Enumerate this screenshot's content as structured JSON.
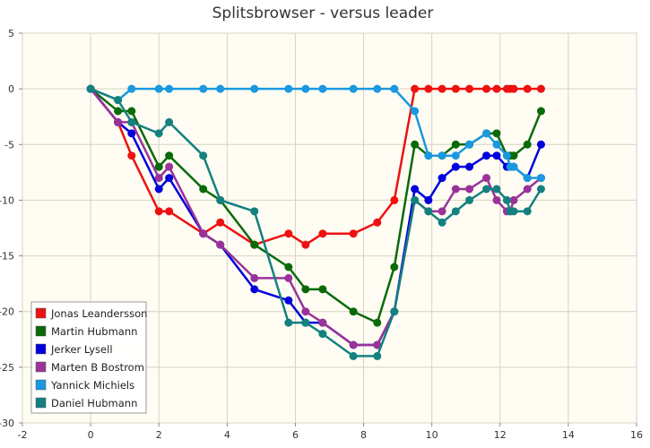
{
  "chart_data": {
    "type": "line",
    "title": "Splitsbrowser - versus leader",
    "xlabel": "",
    "ylabel": "",
    "xlim": [
      -2,
      16
    ],
    "ylim": [
      -30,
      5
    ],
    "xticks": [
      "-2",
      "0",
      "2",
      "4",
      "6",
      "8",
      "10",
      "12",
      "14",
      "16"
    ],
    "yticks": [
      "5",
      "0",
      "-5",
      "-10",
      "-15",
      "-20",
      "-25",
      "-30"
    ],
    "grid": true,
    "legend_position": "bottom-left",
    "colors": {
      "background": "#fffdf3",
      "grid": "#d6d2c2",
      "axis": "#888888"
    },
    "series": [
      {
        "name": "Jonas Leandersson",
        "color": "#ee1111",
        "x": [
          0,
          0.8,
          1.2,
          2.0,
          2.3,
          3.3,
          3.8,
          4.8,
          5.8,
          6.3,
          6.8,
          7.7,
          8.4,
          8.9,
          9.5,
          9.9,
          10.3,
          10.7,
          11.1,
          11.6,
          11.9,
          12.2,
          12.3,
          12.4,
          12.8,
          13.2
        ],
        "y": [
          0,
          -3,
          -6,
          -11,
          -11,
          -13,
          -12,
          -14,
          -13,
          -14,
          -13,
          -13,
          -12,
          -10,
          0,
          0,
          0,
          0,
          0,
          0,
          0,
          0,
          0,
          0,
          0,
          0
        ]
      },
      {
        "name": "Martin Hubmann",
        "color": "#0a6a0a",
        "x": [
          0,
          0.8,
          1.2,
          2.0,
          2.3,
          3.3,
          3.8,
          4.8,
          5.8,
          6.3,
          6.8,
          7.7,
          8.4,
          8.9,
          9.5,
          9.9,
          10.3,
          10.7,
          11.1,
          11.6,
          11.9,
          12.2,
          12.3,
          12.4,
          12.8,
          13.2
        ],
        "y": [
          0,
          -2,
          -2,
          -7,
          -6,
          -9,
          -10,
          -14,
          -16,
          -18,
          -18,
          -20,
          -21,
          -16,
          -5,
          -6,
          -6,
          -5,
          -5,
          -4,
          -4,
          -6,
          -6,
          -6,
          -5,
          -2
        ]
      },
      {
        "name": "Jerker Lysell",
        "color": "#0000dd",
        "x": [
          0,
          0.8,
          1.2,
          2.0,
          2.3,
          3.3,
          3.8,
          4.8,
          5.8,
          6.3,
          6.8,
          7.7,
          8.4,
          8.9,
          9.5,
          9.9,
          10.3,
          10.7,
          11.1,
          11.6,
          11.9,
          12.2,
          12.3,
          12.4,
          12.8,
          13.2
        ],
        "y": [
          0,
          -3,
          -4,
          -9,
          -8,
          -13,
          -14,
          -18,
          -19,
          -21,
          -21,
          -23,
          -23,
          -20,
          -9,
          -10,
          -8,
          -7,
          -7,
          -6,
          -6,
          -7,
          -7,
          -7,
          -8,
          -5
        ]
      },
      {
        "name": "Marten B Bostrom",
        "color": "#993399",
        "x": [
          0,
          0.8,
          1.2,
          2.0,
          2.3,
          3.3,
          3.8,
          4.8,
          5.8,
          6.3,
          6.8,
          7.7,
          8.4,
          8.9,
          9.5,
          9.9,
          10.3,
          10.7,
          11.1,
          11.6,
          11.9,
          12.2,
          12.3,
          12.4,
          12.8,
          13.2
        ],
        "y": [
          0,
          -3,
          -3,
          -8,
          -7,
          -13,
          -14,
          -17,
          -17,
          -20,
          -21,
          -23,
          -23,
          -20,
          -10,
          -11,
          -11,
          -9,
          -9,
          -8,
          -10,
          -11,
          -11,
          -10,
          -9,
          -8
        ]
      },
      {
        "name": "Yannick Michiels",
        "color": "#1a98e0",
        "x": [
          0,
          0.8,
          1.2,
          2.0,
          2.3,
          3.3,
          3.8,
          4.8,
          5.8,
          6.3,
          6.8,
          7.7,
          8.4,
          8.9,
          9.5,
          9.9,
          10.3,
          10.7,
          11.1,
          11.6,
          11.9,
          12.2,
          12.3,
          12.4,
          12.8,
          13.2
        ],
        "y": [
          0,
          -1,
          0,
          0,
          0,
          0,
          0,
          0,
          0,
          0,
          0,
          0,
          0,
          0,
          -2,
          -6,
          -6,
          -6,
          -5,
          -4,
          -5,
          -6,
          -7,
          -7,
          -8,
          -8
        ]
      },
      {
        "name": "Daniel Hubmann",
        "color": "#148080",
        "x": [
          0,
          0.8,
          1.2,
          2.0,
          2.3,
          3.3,
          3.8,
          4.8,
          5.8,
          6.3,
          6.8,
          7.7,
          8.4,
          8.9,
          9.5,
          9.9,
          10.3,
          10.7,
          11.1,
          11.6,
          11.9,
          12.2,
          12.3,
          12.4,
          12.8,
          13.2
        ],
        "y": [
          0,
          -1,
          -3,
          -4,
          -3,
          -6,
          -10,
          -11,
          -21,
          -21,
          -22,
          -24,
          -24,
          -20,
          -10,
          -11,
          -12,
          -11,
          -10,
          -9,
          -9,
          -10,
          -11,
          -11,
          -11,
          -9
        ]
      }
    ]
  }
}
